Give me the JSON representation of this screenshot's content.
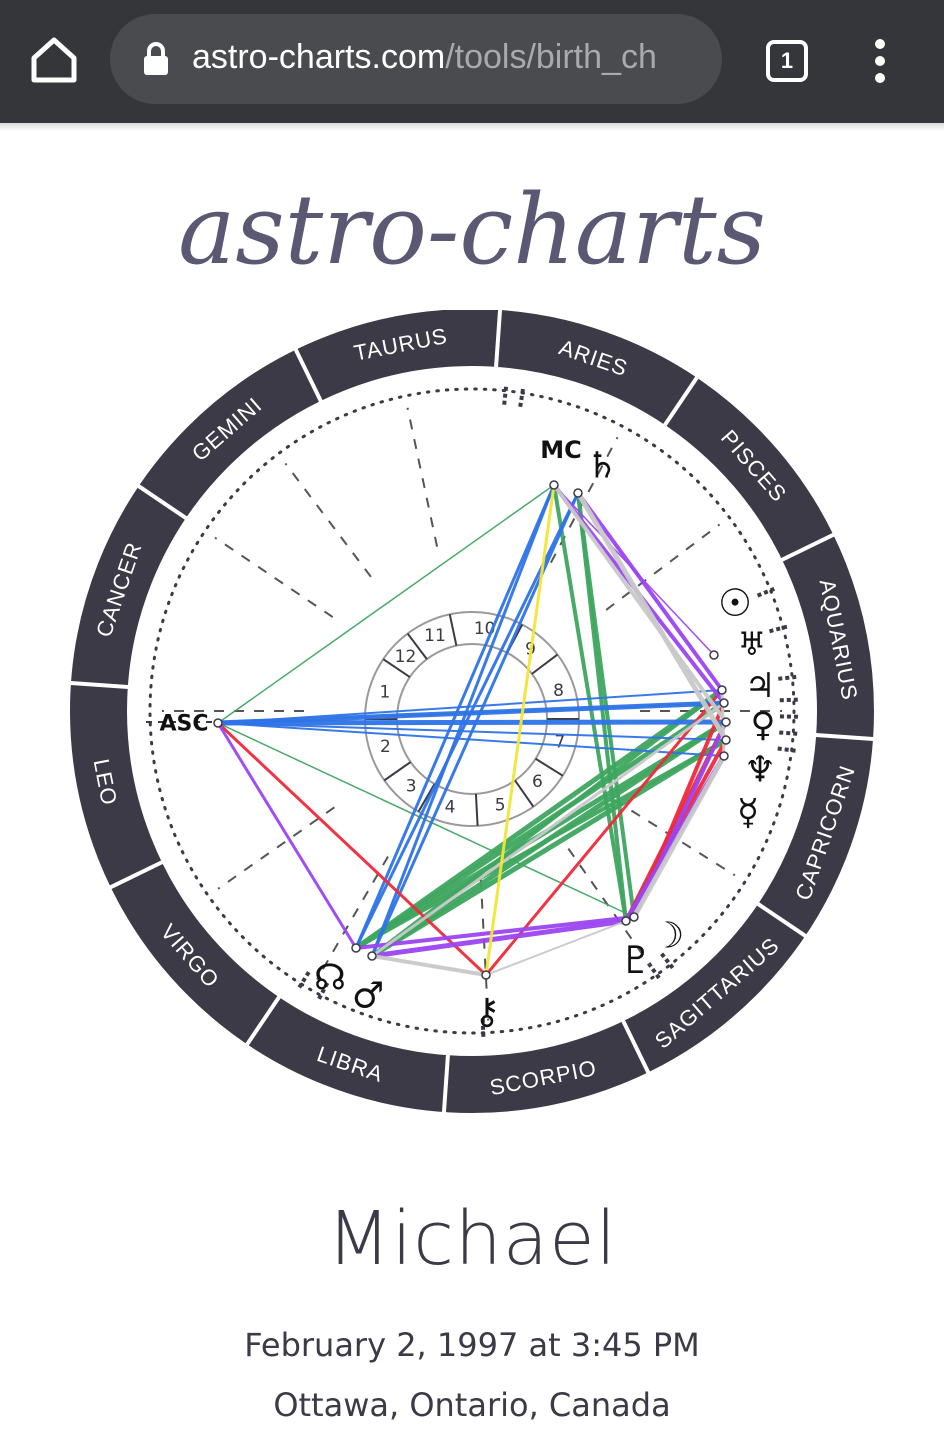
{
  "browser": {
    "url_host": "astro-charts.com",
    "url_path": "/tools/birth_ch",
    "tab_count": "1",
    "icons": [
      "home-icon",
      "lock-icon",
      "tab-switcher-icon",
      "more-menu-icon"
    ]
  },
  "site": {
    "logo_text": "astro-charts"
  },
  "chart": {
    "signs": [
      "ARIES",
      "PISCES",
      "AQUARIUS",
      "CAPRICORN",
      "SAGITTARIUS",
      "SCORPIO",
      "LIBRA",
      "VIRGO",
      "LEO",
      "CANCER",
      "GEMINI",
      "TAURUS"
    ],
    "house_numbers": [
      "10",
      "9",
      "8",
      "7",
      "6",
      "5",
      "4",
      "3",
      "2",
      "1",
      "12",
      "11"
    ],
    "asc_label": "ASC",
    "mc_label": "MC",
    "planet_glyphs": {
      "saturn": "♄",
      "sun": "☉",
      "uranus": "♅",
      "jupiter": "♃",
      "venus": "♀",
      "neptune": "♆",
      "mercury": "☿",
      "moon": "☽",
      "pluto": "♇",
      "chiron": "⚷",
      "mars": "♂",
      "node": "☊"
    },
    "aspect_colors": {
      "green": "#3ea55f",
      "blue": "#2e73e8",
      "red": "#ee2a3a",
      "purple": "#9b45f0",
      "gray": "#c8c8c8",
      "yellow": "#f2e535"
    }
  },
  "person": {
    "name": "Michael",
    "date": "February 2, 1997 at 3:45 PM",
    "place": "Ottawa, Ontario, Canada"
  }
}
